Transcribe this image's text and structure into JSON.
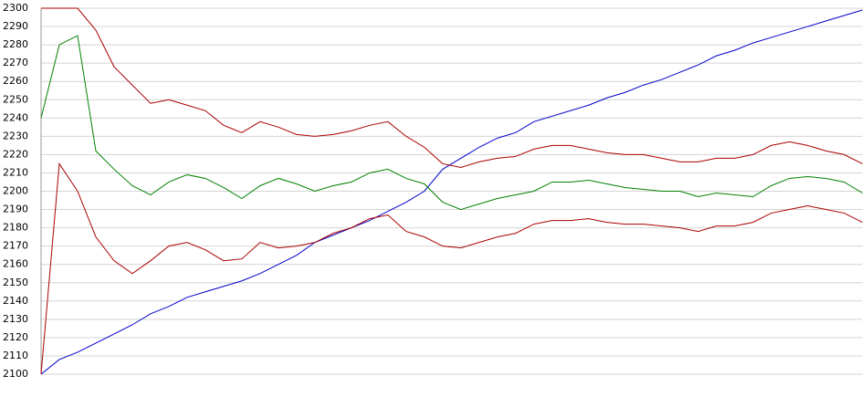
{
  "chart_data": {
    "type": "line",
    "ylim": [
      2100,
      2300
    ],
    "yticks": [
      2100,
      2110,
      2120,
      2130,
      2140,
      2150,
      2160,
      2170,
      2180,
      2190,
      2200,
      2210,
      2220,
      2230,
      2240,
      2250,
      2260,
      2270,
      2280,
      2290,
      2300
    ],
    "grid": true,
    "series": [
      {
        "color": "#0000cc",
        "values": [
          2100,
          2108,
          2112,
          2117,
          2122,
          2127,
          2133,
          2137,
          2142,
          2145,
          2148,
          2151,
          2155,
          2160,
          2165,
          2172,
          2176,
          2180,
          2184,
          2189,
          2194,
          2200,
          2212,
          2218,
          2224,
          2229,
          2232,
          2238,
          2241,
          2244,
          2247,
          2251,
          2254,
          2258,
          2261,
          2265,
          2269,
          2274,
          2277,
          2281,
          2284,
          2287,
          2290,
          2293,
          2296,
          2299
        ]
      },
      {
        "color": "#008000",
        "values": [
          2240,
          2280,
          2285,
          2222,
          2212,
          2203,
          2198,
          2205,
          2209,
          2207,
          2202,
          2196,
          2203,
          2207,
          2204,
          2200,
          2203,
          2205,
          2210,
          2212,
          2207,
          2204,
          2194,
          2190,
          2193,
          2196,
          2198,
          2200,
          2205,
          2205,
          2206,
          2204,
          2202,
          2201,
          2200,
          2200,
          2197,
          2199,
          2198,
          2197,
          2203,
          2207,
          2208,
          2207,
          2205,
          2199
        ]
      },
      {
        "color": "#aa0000",
        "values": [
          2300,
          2300,
          2300,
          2288,
          2268,
          2258,
          2248,
          2250,
          2247,
          2244,
          2236,
          2232,
          2238,
          2235,
          2231,
          2230,
          2231,
          2233,
          2236,
          2238,
          2230,
          2224,
          2215,
          2213,
          2216,
          2218,
          2219,
          2223,
          2225,
          2225,
          2223,
          2221,
          2220,
          2220,
          2218,
          2216,
          2216,
          2218,
          2218,
          2220,
          2225,
          2227,
          2225,
          2222,
          2220,
          2215
        ]
      },
      {
        "color": "#aa0000",
        "values": [
          2100,
          2215,
          2200,
          2175,
          2162,
          2155,
          2162,
          2170,
          2172,
          2168,
          2162,
          2163,
          2172,
          2169,
          2170,
          2172,
          2177,
          2180,
          2185,
          2187,
          2178,
          2175,
          2170,
          2169,
          2172,
          2175,
          2177,
          2182,
          2184,
          2184,
          2185,
          2183,
          2182,
          2182,
          2181,
          2180,
          2178,
          2181,
          2181,
          2183,
          2188,
          2190,
          2192,
          2190,
          2188,
          2183
        ]
      }
    ]
  }
}
